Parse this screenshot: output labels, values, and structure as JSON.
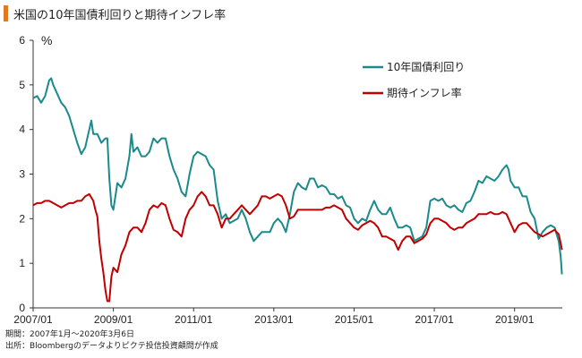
{
  "header": {
    "title": "米国の10年国債利回りと期待インフレ率"
  },
  "footnotes": {
    "period": "期間：2007年1月～2020年3月6日",
    "source": "出所：Bloombergのデータよりピクテ投信投資顧問が作成"
  },
  "chart_data": {
    "type": "line",
    "unit": "%",
    "ylim": [
      0,
      6
    ],
    "yticks": [
      "0",
      "1",
      "2",
      "3",
      "4",
      "5",
      "6"
    ],
    "xlim": [
      2007.0,
      2020.19
    ],
    "xticks": [
      {
        "label": "2007/01",
        "x": 2007.0
      },
      {
        "label": "2009/01",
        "x": 2009.0
      },
      {
        "label": "2011/01",
        "x": 2011.0
      },
      {
        "label": "2013/01",
        "x": 2013.0
      },
      {
        "label": "2015/01",
        "x": 2015.0
      },
      {
        "label": "2017/01",
        "x": 2017.0
      },
      {
        "label": "2019/01",
        "x": 2019.0
      }
    ],
    "grid": false,
    "legend_position": "top-right",
    "series": [
      {
        "name": "10年国債利回り",
        "color": "#1a8a8a",
        "points": [
          [
            2007.0,
            4.7
          ],
          [
            2007.1,
            4.75
          ],
          [
            2007.2,
            4.6
          ],
          [
            2007.3,
            4.75
          ],
          [
            2007.4,
            5.1
          ],
          [
            2007.45,
            5.15
          ],
          [
            2007.5,
            5.0
          ],
          [
            2007.6,
            4.8
          ],
          [
            2007.7,
            4.6
          ],
          [
            2007.8,
            4.5
          ],
          [
            2007.9,
            4.3
          ],
          [
            2008.0,
            4.0
          ],
          [
            2008.1,
            3.7
          ],
          [
            2008.2,
            3.45
          ],
          [
            2008.3,
            3.6
          ],
          [
            2008.4,
            4.0
          ],
          [
            2008.45,
            4.2
          ],
          [
            2008.5,
            3.9
          ],
          [
            2008.6,
            3.9
          ],
          [
            2008.7,
            3.7
          ],
          [
            2008.8,
            3.8
          ],
          [
            2008.85,
            3.8
          ],
          [
            2008.9,
            2.9
          ],
          [
            2008.95,
            2.3
          ],
          [
            2009.0,
            2.2
          ],
          [
            2009.1,
            2.8
          ],
          [
            2009.2,
            2.7
          ],
          [
            2009.3,
            2.9
          ],
          [
            2009.4,
            3.4
          ],
          [
            2009.45,
            3.9
          ],
          [
            2009.5,
            3.5
          ],
          [
            2009.6,
            3.6
          ],
          [
            2009.7,
            3.4
          ],
          [
            2009.8,
            3.4
          ],
          [
            2009.9,
            3.5
          ],
          [
            2010.0,
            3.8
          ],
          [
            2010.1,
            3.7
          ],
          [
            2010.2,
            3.8
          ],
          [
            2010.3,
            3.8
          ],
          [
            2010.4,
            3.4
          ],
          [
            2010.5,
            3.1
          ],
          [
            2010.6,
            2.9
          ],
          [
            2010.7,
            2.6
          ],
          [
            2010.8,
            2.5
          ],
          [
            2010.9,
            3.0
          ],
          [
            2011.0,
            3.4
          ],
          [
            2011.1,
            3.5
          ],
          [
            2011.2,
            3.45
          ],
          [
            2011.3,
            3.4
          ],
          [
            2011.4,
            3.2
          ],
          [
            2011.5,
            3.1
          ],
          [
            2011.6,
            2.4
          ],
          [
            2011.7,
            2.0
          ],
          [
            2011.8,
            2.1
          ],
          [
            2011.9,
            1.9
          ],
          [
            2012.0,
            1.95
          ],
          [
            2012.1,
            2.0
          ],
          [
            2012.2,
            2.2
          ],
          [
            2012.3,
            2.0
          ],
          [
            2012.4,
            1.7
          ],
          [
            2012.5,
            1.5
          ],
          [
            2012.6,
            1.6
          ],
          [
            2012.7,
            1.7
          ],
          [
            2012.8,
            1.7
          ],
          [
            2012.9,
            1.7
          ],
          [
            2013.0,
            1.9
          ],
          [
            2013.1,
            2.0
          ],
          [
            2013.2,
            1.9
          ],
          [
            2013.3,
            1.7
          ],
          [
            2013.4,
            2.1
          ],
          [
            2013.5,
            2.6
          ],
          [
            2013.6,
            2.8
          ],
          [
            2013.7,
            2.7
          ],
          [
            2013.8,
            2.65
          ],
          [
            2013.9,
            2.9
          ],
          [
            2014.0,
            2.9
          ],
          [
            2014.1,
            2.7
          ],
          [
            2014.2,
            2.75
          ],
          [
            2014.3,
            2.7
          ],
          [
            2014.4,
            2.55
          ],
          [
            2014.5,
            2.55
          ],
          [
            2014.6,
            2.45
          ],
          [
            2014.7,
            2.5
          ],
          [
            2014.8,
            2.3
          ],
          [
            2014.9,
            2.25
          ],
          [
            2015.0,
            2.0
          ],
          [
            2015.1,
            1.9
          ],
          [
            2015.2,
            2.0
          ],
          [
            2015.3,
            1.95
          ],
          [
            2015.4,
            2.2
          ],
          [
            2015.5,
            2.4
          ],
          [
            2015.6,
            2.2
          ],
          [
            2015.7,
            2.1
          ],
          [
            2015.8,
            2.1
          ],
          [
            2015.9,
            2.25
          ],
          [
            2016.0,
            2.0
          ],
          [
            2016.1,
            1.8
          ],
          [
            2016.2,
            1.8
          ],
          [
            2016.3,
            1.85
          ],
          [
            2016.4,
            1.8
          ],
          [
            2016.5,
            1.5
          ],
          [
            2016.6,
            1.55
          ],
          [
            2016.7,
            1.6
          ],
          [
            2016.8,
            1.8
          ],
          [
            2016.9,
            2.4
          ],
          [
            2017.0,
            2.45
          ],
          [
            2017.1,
            2.4
          ],
          [
            2017.2,
            2.45
          ],
          [
            2017.3,
            2.3
          ],
          [
            2017.4,
            2.25
          ],
          [
            2017.5,
            2.3
          ],
          [
            2017.6,
            2.2
          ],
          [
            2017.7,
            2.15
          ],
          [
            2017.8,
            2.35
          ],
          [
            2017.9,
            2.4
          ],
          [
            2018.0,
            2.6
          ],
          [
            2018.1,
            2.85
          ],
          [
            2018.2,
            2.8
          ],
          [
            2018.3,
            2.95
          ],
          [
            2018.4,
            2.9
          ],
          [
            2018.5,
            2.85
          ],
          [
            2018.6,
            2.95
          ],
          [
            2018.7,
            3.1
          ],
          [
            2018.8,
            3.2
          ],
          [
            2018.85,
            3.1
          ],
          [
            2018.9,
            2.85
          ],
          [
            2019.0,
            2.7
          ],
          [
            2019.1,
            2.7
          ],
          [
            2019.2,
            2.5
          ],
          [
            2019.3,
            2.5
          ],
          [
            2019.4,
            2.15
          ],
          [
            2019.5,
            2.0
          ],
          [
            2019.6,
            1.55
          ],
          [
            2019.7,
            1.7
          ],
          [
            2019.8,
            1.8
          ],
          [
            2019.9,
            1.85
          ],
          [
            2020.0,
            1.8
          ],
          [
            2020.05,
            1.65
          ],
          [
            2020.1,
            1.5
          ],
          [
            2020.15,
            1.15
          ],
          [
            2020.18,
            0.75
          ]
        ]
      },
      {
        "name": "期待インフレ率",
        "color": "#c00000",
        "points": [
          [
            2007.0,
            2.3
          ],
          [
            2007.1,
            2.35
          ],
          [
            2007.2,
            2.35
          ],
          [
            2007.3,
            2.4
          ],
          [
            2007.4,
            2.4
          ],
          [
            2007.5,
            2.35
          ],
          [
            2007.6,
            2.3
          ],
          [
            2007.7,
            2.25
          ],
          [
            2007.8,
            2.3
          ],
          [
            2007.9,
            2.35
          ],
          [
            2008.0,
            2.35
          ],
          [
            2008.1,
            2.4
          ],
          [
            2008.2,
            2.4
          ],
          [
            2008.3,
            2.5
          ],
          [
            2008.4,
            2.55
          ],
          [
            2008.5,
            2.4
          ],
          [
            2008.55,
            2.2
          ],
          [
            2008.6,
            2.05
          ],
          [
            2008.65,
            1.5
          ],
          [
            2008.7,
            1.1
          ],
          [
            2008.75,
            0.8
          ],
          [
            2008.8,
            0.4
          ],
          [
            2008.85,
            0.15
          ],
          [
            2008.9,
            0.15
          ],
          [
            2008.95,
            0.7
          ],
          [
            2009.0,
            0.9
          ],
          [
            2009.1,
            0.8
          ],
          [
            2009.2,
            1.2
          ],
          [
            2009.3,
            1.4
          ],
          [
            2009.4,
            1.7
          ],
          [
            2009.5,
            1.8
          ],
          [
            2009.6,
            1.8
          ],
          [
            2009.7,
            1.7
          ],
          [
            2009.8,
            1.9
          ],
          [
            2009.9,
            2.2
          ],
          [
            2010.0,
            2.3
          ],
          [
            2010.1,
            2.25
          ],
          [
            2010.2,
            2.35
          ],
          [
            2010.3,
            2.3
          ],
          [
            2010.4,
            2.0
          ],
          [
            2010.5,
            1.75
          ],
          [
            2010.6,
            1.7
          ],
          [
            2010.7,
            1.6
          ],
          [
            2010.8,
            2.0
          ],
          [
            2010.9,
            2.2
          ],
          [
            2011.0,
            2.3
          ],
          [
            2011.1,
            2.5
          ],
          [
            2011.2,
            2.6
          ],
          [
            2011.3,
            2.5
          ],
          [
            2011.4,
            2.3
          ],
          [
            2011.5,
            2.3
          ],
          [
            2011.6,
            2.1
          ],
          [
            2011.7,
            1.8
          ],
          [
            2011.8,
            2.0
          ],
          [
            2011.9,
            2.0
          ],
          [
            2012.0,
            2.1
          ],
          [
            2012.1,
            2.2
          ],
          [
            2012.2,
            2.3
          ],
          [
            2012.3,
            2.2
          ],
          [
            2012.4,
            2.1
          ],
          [
            2012.5,
            2.2
          ],
          [
            2012.6,
            2.3
          ],
          [
            2012.7,
            2.5
          ],
          [
            2012.8,
            2.5
          ],
          [
            2012.9,
            2.45
          ],
          [
            2013.0,
            2.5
          ],
          [
            2013.1,
            2.55
          ],
          [
            2013.2,
            2.5
          ],
          [
            2013.3,
            2.3
          ],
          [
            2013.4,
            2.0
          ],
          [
            2013.5,
            2.05
          ],
          [
            2013.6,
            2.2
          ],
          [
            2013.7,
            2.2
          ],
          [
            2013.8,
            2.2
          ],
          [
            2013.9,
            2.2
          ],
          [
            2014.0,
            2.2
          ],
          [
            2014.1,
            2.2
          ],
          [
            2014.2,
            2.2
          ],
          [
            2014.3,
            2.25
          ],
          [
            2014.4,
            2.25
          ],
          [
            2014.5,
            2.3
          ],
          [
            2014.6,
            2.25
          ],
          [
            2014.7,
            2.2
          ],
          [
            2014.8,
            2.0
          ],
          [
            2014.9,
            1.9
          ],
          [
            2015.0,
            1.8
          ],
          [
            2015.1,
            1.75
          ],
          [
            2015.2,
            1.85
          ],
          [
            2015.3,
            1.9
          ],
          [
            2015.4,
            1.95
          ],
          [
            2015.5,
            1.9
          ],
          [
            2015.6,
            1.8
          ],
          [
            2015.7,
            1.6
          ],
          [
            2015.8,
            1.6
          ],
          [
            2015.9,
            1.55
          ],
          [
            2016.0,
            1.5
          ],
          [
            2016.1,
            1.3
          ],
          [
            2016.2,
            1.5
          ],
          [
            2016.3,
            1.6
          ],
          [
            2016.4,
            1.6
          ],
          [
            2016.5,
            1.45
          ],
          [
            2016.6,
            1.5
          ],
          [
            2016.7,
            1.55
          ],
          [
            2016.8,
            1.65
          ],
          [
            2016.9,
            1.9
          ],
          [
            2017.0,
            2.0
          ],
          [
            2017.1,
            2.0
          ],
          [
            2017.2,
            1.95
          ],
          [
            2017.3,
            1.9
          ],
          [
            2017.4,
            1.8
          ],
          [
            2017.5,
            1.75
          ],
          [
            2017.6,
            1.8
          ],
          [
            2017.7,
            1.8
          ],
          [
            2017.8,
            1.9
          ],
          [
            2017.9,
            1.95
          ],
          [
            2018.0,
            2.0
          ],
          [
            2018.1,
            2.1
          ],
          [
            2018.2,
            2.1
          ],
          [
            2018.3,
            2.1
          ],
          [
            2018.4,
            2.15
          ],
          [
            2018.5,
            2.1
          ],
          [
            2018.6,
            2.1
          ],
          [
            2018.7,
            2.15
          ],
          [
            2018.8,
            2.1
          ],
          [
            2018.9,
            1.9
          ],
          [
            2019.0,
            1.7
          ],
          [
            2019.1,
            1.85
          ],
          [
            2019.2,
            1.9
          ],
          [
            2019.3,
            1.9
          ],
          [
            2019.4,
            1.8
          ],
          [
            2019.5,
            1.7
          ],
          [
            2019.6,
            1.65
          ],
          [
            2019.7,
            1.6
          ],
          [
            2019.8,
            1.65
          ],
          [
            2019.9,
            1.7
          ],
          [
            2020.0,
            1.75
          ],
          [
            2020.05,
            1.7
          ],
          [
            2020.1,
            1.65
          ],
          [
            2020.15,
            1.45
          ],
          [
            2020.18,
            1.3
          ]
        ]
      }
    ]
  }
}
